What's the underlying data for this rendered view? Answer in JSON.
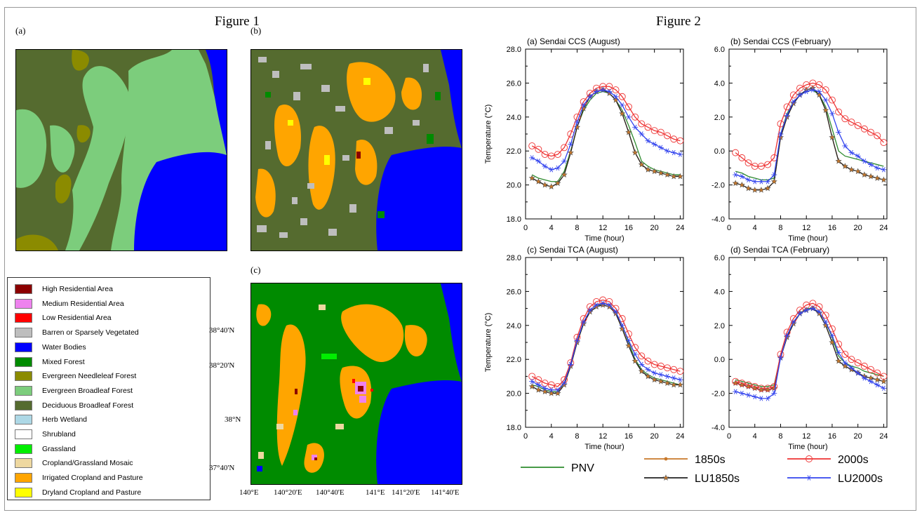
{
  "figure1": {
    "title": "Figure 1",
    "panels": [
      "(a)",
      "(b)",
      "(c)"
    ],
    "legend": [
      {
        "label": "High Residential Area",
        "color": "#8b0000"
      },
      {
        "label": "Medium Residential Area",
        "color": "#ee82ee"
      },
      {
        "label": "Low Residential Area",
        "color": "#ff0000"
      },
      {
        "label": "Barren or Sparsely Vegetated",
        "color": "#bebebe"
      },
      {
        "label": "Water Bodies",
        "color": "#0000ff"
      },
      {
        "label": "Mixed Forest",
        "color": "#008b00"
      },
      {
        "label": "Evergreen Needleleaf Forest",
        "color": "#8b8b00"
      },
      {
        "label": "Evergreen Broadleaf Forest",
        "color": "#7ccd7c"
      },
      {
        "label": "Deciduous Broadleaf Forest",
        "color": "#556b2f"
      },
      {
        "label": "Herb Wetland",
        "color": "#add8e6"
      },
      {
        "label": "Shrubland",
        "color": "#ffffff"
      },
      {
        "label": "Grassland",
        "color": "#00ee00"
      },
      {
        "label": "Cropland/Grassland Mosaic",
        "color": "#eed8a0"
      },
      {
        "label": "Irrigated Cropland and Pasture",
        "color": "#ffa500"
      },
      {
        "label": "Dryland Cropland and Pasture",
        "color": "#ffff00"
      }
    ],
    "lat_ticks": [
      "38°40'N",
      "38°20'N",
      "38°N",
      "37°40'N"
    ],
    "lon_ticks": [
      "140°E",
      "140°20'E",
      "140°40'E",
      "141°E",
      "141°20'E",
      "141°40'E"
    ]
  },
  "figure2": {
    "title": "Figure 2",
    "series_styles": [
      {
        "name": "PNV",
        "color": "#2e8b2e",
        "marker": "none"
      },
      {
        "name": "1850s",
        "color": "#c8782a",
        "marker": "dot"
      },
      {
        "name": "LU1850s",
        "color": "#222222",
        "marker": "star"
      },
      {
        "name": "2000s",
        "color": "#ee3333",
        "marker": "circle"
      },
      {
        "name": "LU2000s",
        "color": "#3344ee",
        "marker": "asterisk"
      }
    ]
  },
  "chart_data": [
    {
      "type": "line",
      "title": "(a) Sendai CCS (August)",
      "xlabel": "Time (hour)",
      "ylabel": "Temperature (°C)",
      "xlim": [
        0,
        24.5
      ],
      "ylim": [
        18,
        28
      ],
      "xticks": [
        0,
        4,
        8,
        12,
        16,
        20,
        24
      ],
      "yticks": [
        "18.0",
        "20.0",
        "22.0",
        "24.0",
        "26.0",
        "28.0"
      ],
      "x": [
        1,
        2,
        3,
        4,
        5,
        6,
        7,
        8,
        9,
        10,
        11,
        12,
        13,
        14,
        15,
        16,
        17,
        18,
        19,
        20,
        21,
        22,
        23,
        24
      ],
      "series": [
        {
          "name": "PNV",
          "values": [
            20.6,
            20.4,
            20.3,
            20.2,
            20.2,
            20.8,
            22.0,
            23.4,
            24.4,
            25.0,
            25.4,
            25.5,
            25.4,
            25.0,
            24.4,
            23.5,
            22.5,
            21.4,
            21.1,
            20.9,
            20.8,
            20.7,
            20.6,
            20.6
          ]
        },
        {
          "name": "1850s",
          "values": [
            20.4,
            20.2,
            20.0,
            19.9,
            20.1,
            20.6,
            21.9,
            23.4,
            24.5,
            25.2,
            25.5,
            25.6,
            25.4,
            25.0,
            24.2,
            23.1,
            21.9,
            21.2,
            20.9,
            20.8,
            20.7,
            20.6,
            20.5,
            20.5
          ]
        },
        {
          "name": "LU1850s",
          "values": [
            20.4,
            20.2,
            20.0,
            19.9,
            20.1,
            20.6,
            21.9,
            23.4,
            24.5,
            25.2,
            25.5,
            25.6,
            25.4,
            25.0,
            24.2,
            23.1,
            21.9,
            21.2,
            20.9,
            20.8,
            20.7,
            20.6,
            20.5,
            20.5
          ]
        },
        {
          "name": "2000s",
          "values": [
            22.3,
            22.1,
            21.8,
            21.7,
            21.8,
            22.2,
            23.0,
            24.0,
            24.9,
            25.4,
            25.7,
            25.8,
            25.8,
            25.6,
            25.2,
            24.6,
            24.0,
            23.6,
            23.4,
            23.2,
            23.1,
            22.9,
            22.7,
            22.6
          ]
        },
        {
          "name": "LU2000s",
          "values": [
            21.6,
            21.4,
            21.1,
            20.9,
            21.0,
            21.4,
            22.4,
            23.7,
            24.7,
            25.2,
            25.5,
            25.6,
            25.5,
            25.2,
            24.7,
            24.0,
            23.4,
            23.0,
            22.6,
            22.4,
            22.2,
            22.0,
            21.9,
            21.8
          ]
        }
      ]
    },
    {
      "type": "line",
      "title": "(b) Sendai CCS (February)",
      "xlabel": "Time (hour)",
      "ylabel": "",
      "xlim": [
        0,
        24.5
      ],
      "ylim": [
        -4,
        6
      ],
      "xticks": [
        0,
        4,
        8,
        12,
        16,
        20,
        24
      ],
      "yticks": [
        "-4.0",
        "-2.0",
        "0.0",
        "2.0",
        "4.0",
        "6.0"
      ],
      "x": [
        1,
        2,
        3,
        4,
        5,
        6,
        7,
        8,
        9,
        10,
        11,
        12,
        13,
        14,
        15,
        16,
        17,
        18,
        19,
        20,
        21,
        22,
        23,
        24
      ],
      "series": [
        {
          "name": "PNV",
          "values": [
            -1.2,
            -1.3,
            -1.5,
            -1.6,
            -1.7,
            -1.7,
            -1.6,
            1.0,
            2.2,
            2.9,
            3.3,
            3.5,
            3.6,
            3.3,
            2.6,
            1.3,
            0.0,
            -0.3,
            -0.4,
            -0.5,
            -0.6,
            -0.7,
            -0.8,
            -0.9
          ]
        },
        {
          "name": "1850s",
          "values": [
            -1.9,
            -2.0,
            -2.2,
            -2.3,
            -2.3,
            -2.2,
            -1.8,
            0.8,
            2.0,
            2.8,
            3.3,
            3.6,
            3.7,
            3.3,
            2.4,
            0.8,
            -0.6,
            -0.9,
            -1.1,
            -1.2,
            -1.4,
            -1.5,
            -1.6,
            -1.7
          ]
        },
        {
          "name": "LU1850s",
          "values": [
            -1.9,
            -2.0,
            -2.2,
            -2.3,
            -2.3,
            -2.2,
            -1.8,
            0.8,
            2.0,
            2.8,
            3.3,
            3.6,
            3.7,
            3.3,
            2.4,
            0.8,
            -0.6,
            -0.9,
            -1.1,
            -1.2,
            -1.4,
            -1.5,
            -1.6,
            -1.7
          ]
        },
        {
          "name": "2000s",
          "values": [
            -0.1,
            -0.4,
            -0.7,
            -0.9,
            -0.9,
            -0.8,
            -0.4,
            1.6,
            2.6,
            3.3,
            3.7,
            3.9,
            4.0,
            3.9,
            3.6,
            3.0,
            2.3,
            1.9,
            1.7,
            1.5,
            1.3,
            1.1,
            0.9,
            0.5
          ]
        },
        {
          "name": "LU2000s",
          "values": [
            -1.4,
            -1.5,
            -1.7,
            -1.8,
            -1.8,
            -1.8,
            -1.4,
            1.0,
            2.1,
            2.9,
            3.3,
            3.5,
            3.6,
            3.5,
            3.0,
            2.2,
            1.1,
            0.3,
            -0.1,
            -0.3,
            -0.6,
            -0.8,
            -1.0,
            -1.1
          ]
        }
      ]
    },
    {
      "type": "line",
      "title": "(c) Sendai TCA (August)",
      "xlabel": "Time (hour)",
      "ylabel": "Temperature (°C)",
      "xlim": [
        0,
        24.5
      ],
      "ylim": [
        18,
        28
      ],
      "xticks": [
        0,
        4,
        8,
        12,
        16,
        20,
        24
      ],
      "yticks": [
        "18.0",
        "20.0",
        "22.0",
        "24.0",
        "26.0",
        "28.0"
      ],
      "x": [
        1,
        2,
        3,
        4,
        5,
        6,
        7,
        8,
        9,
        10,
        11,
        12,
        13,
        14,
        15,
        16,
        17,
        18,
        19,
        20,
        21,
        22,
        23,
        24
      ],
      "series": [
        {
          "name": "PNV",
          "values": [
            20.5,
            20.4,
            20.2,
            20.1,
            20.1,
            20.6,
            21.7,
            23.0,
            24.1,
            24.8,
            25.1,
            25.3,
            25.2,
            24.8,
            24.0,
            23.0,
            22.0,
            21.4,
            21.1,
            20.9,
            20.8,
            20.7,
            20.6,
            20.5
          ]
        },
        {
          "name": "1850s",
          "values": [
            20.4,
            20.2,
            20.1,
            20.0,
            20.0,
            20.5,
            21.6,
            23.0,
            24.1,
            24.8,
            25.1,
            25.2,
            25.1,
            24.7,
            23.8,
            22.8,
            21.9,
            21.3,
            21.0,
            20.8,
            20.7,
            20.6,
            20.5,
            20.5
          ]
        },
        {
          "name": "LU1850s",
          "values": [
            20.4,
            20.2,
            20.1,
            20.0,
            20.0,
            20.5,
            21.6,
            23.0,
            24.1,
            24.8,
            25.1,
            25.2,
            25.1,
            24.7,
            23.8,
            22.8,
            21.9,
            21.3,
            21.0,
            20.8,
            20.7,
            20.6,
            20.5,
            20.5
          ]
        },
        {
          "name": "2000s",
          "values": [
            21.0,
            20.8,
            20.6,
            20.5,
            20.4,
            20.8,
            21.8,
            23.3,
            24.4,
            25.1,
            25.4,
            25.5,
            25.4,
            25.0,
            24.4,
            23.5,
            22.7,
            22.2,
            21.9,
            21.7,
            21.6,
            21.5,
            21.4,
            21.3
          ]
        },
        {
          "name": "LU2000s",
          "values": [
            20.7,
            20.5,
            20.3,
            20.2,
            20.2,
            20.6,
            21.7,
            23.1,
            24.2,
            24.9,
            25.2,
            25.3,
            25.2,
            24.8,
            24.0,
            23.1,
            22.3,
            21.7,
            21.4,
            21.2,
            21.1,
            21.0,
            20.9,
            20.8
          ]
        }
      ]
    },
    {
      "type": "line",
      "title": "(d) Sendai TCA (February)",
      "xlabel": "Time (hour)",
      "ylabel": "",
      "xlim": [
        0,
        24.5
      ],
      "ylim": [
        -4,
        6
      ],
      "xticks": [
        0,
        4,
        8,
        12,
        16,
        20,
        24
      ],
      "yticks": [
        "-4.0",
        "-2.0",
        "0.0",
        "2.0",
        "4.0",
        "6.0"
      ],
      "x": [
        1,
        2,
        3,
        4,
        5,
        6,
        7,
        8,
        9,
        10,
        11,
        12,
        13,
        14,
        15,
        16,
        17,
        18,
        19,
        20,
        21,
        22,
        23,
        24
      ],
      "series": [
        {
          "name": "PNV",
          "values": [
            -1.2,
            -1.3,
            -1.4,
            -1.5,
            -1.6,
            -1.6,
            -1.5,
            0.2,
            1.4,
            2.2,
            2.7,
            3.0,
            3.0,
            2.8,
            2.2,
            1.3,
            0.2,
            -0.2,
            -0.4,
            -0.5,
            -0.7,
            -0.8,
            -0.9,
            -1.0
          ]
        },
        {
          "name": "1850s",
          "values": [
            -1.4,
            -1.5,
            -1.6,
            -1.7,
            -1.8,
            -1.8,
            -1.7,
            0.1,
            1.3,
            2.1,
            2.7,
            2.9,
            3.0,
            2.7,
            2.0,
            1.0,
            -0.1,
            -0.4,
            -0.6,
            -0.8,
            -1.0,
            -1.1,
            -1.2,
            -1.3
          ]
        },
        {
          "name": "LU1850s",
          "values": [
            -1.4,
            -1.5,
            -1.6,
            -1.7,
            -1.8,
            -1.8,
            -1.7,
            0.1,
            1.3,
            2.1,
            2.7,
            2.9,
            3.0,
            2.7,
            2.0,
            1.0,
            -0.1,
            -0.4,
            -0.6,
            -0.8,
            -1.0,
            -1.1,
            -1.2,
            -1.3
          ]
        },
        {
          "name": "2000s",
          "values": [
            -1.3,
            -1.4,
            -1.5,
            -1.6,
            -1.7,
            -1.7,
            -1.6,
            0.3,
            1.6,
            2.4,
            2.9,
            3.2,
            3.3,
            3.1,
            2.6,
            1.8,
            0.9,
            0.3,
            0.0,
            -0.2,
            -0.4,
            -0.6,
            -0.8,
            -1.0
          ]
        },
        {
          "name": "LU2000s",
          "values": [
            -1.9,
            -2.0,
            -2.1,
            -2.2,
            -2.3,
            -2.3,
            -2.0,
            0.1,
            1.4,
            2.2,
            2.7,
            2.9,
            3.0,
            2.8,
            2.2,
            1.4,
            0.4,
            -0.2,
            -0.5,
            -0.8,
            -1.1,
            -1.3,
            -1.5,
            -1.7
          ]
        }
      ]
    }
  ]
}
